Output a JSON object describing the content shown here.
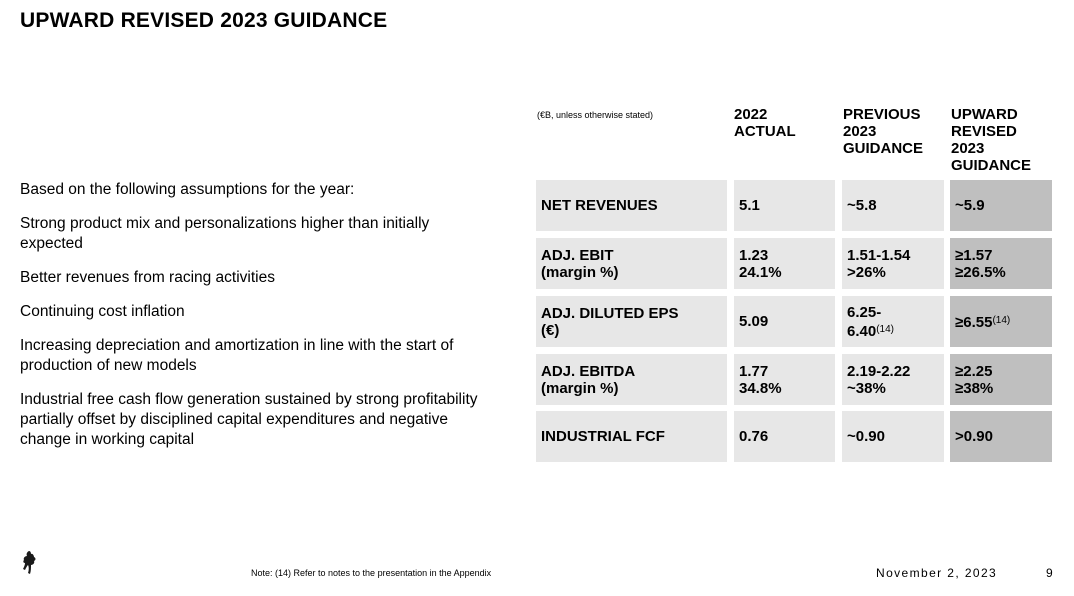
{
  "title": "UPWARD REVISED 2023 GUIDANCE",
  "assumptions": {
    "intro": "Based on the following assumptions for the year:",
    "items": [
      "Strong product mix and personalizations higher than initially expected",
      "Better revenues from racing activities",
      "Continuing cost inflation",
      "Increasing depreciation and amortization in line with the start of production of new models",
      "Industrial free cash flow generation sustained by strong profitability partially offset by disciplined capital expenditures and negative change in working capital"
    ]
  },
  "table": {
    "units": "(€B, unless otherwise stated)",
    "headers": {
      "actual": [
        "2022",
        "ACTUAL"
      ],
      "previous": [
        "PREVIOUS",
        "2023",
        "GUIDANCE"
      ],
      "revised": [
        "UPWARD",
        "REVISED",
        "2023",
        "GUIDANCE"
      ]
    },
    "rows": [
      {
        "label": [
          "NET REVENUES"
        ],
        "actual": [
          "5.1"
        ],
        "previous": [
          "~5.8"
        ],
        "revised": [
          "~5.9"
        ]
      },
      {
        "label": [
          "ADJ. EBIT",
          "(margin %)"
        ],
        "actual": [
          "1.23",
          "24.1%"
        ],
        "previous": [
          "1.51-1.54",
          ">26%"
        ],
        "revised": [
          "≥1.57",
          "≥26.5%"
        ]
      },
      {
        "label": [
          "ADJ. DILUTED EPS",
          "(€)"
        ],
        "actual": [
          "5.09"
        ],
        "previous": [
          "6.25-",
          "6.40"
        ],
        "previous_note": "(14)",
        "revised": [
          "≥6.55"
        ],
        "revised_note": "(14)"
      },
      {
        "label": [
          "ADJ. EBITDA",
          "(margin %)"
        ],
        "actual": [
          "1.77",
          "34.8%"
        ],
        "previous": [
          "2.19-2.22",
          "~38%"
        ],
        "revised": [
          "≥2.25",
          "≥38%"
        ]
      },
      {
        "label": [
          "INDUSTRIAL FCF"
        ],
        "actual": [
          "0.76"
        ],
        "previous": [
          "~0.90"
        ],
        "revised": [
          ">0.90"
        ]
      }
    ]
  },
  "footer": {
    "logo_icon": "prancing-horse-icon",
    "note": "Note: (14) Refer to notes to the presentation in the Appendix",
    "date": "November 2, 2023",
    "page": "9"
  }
}
